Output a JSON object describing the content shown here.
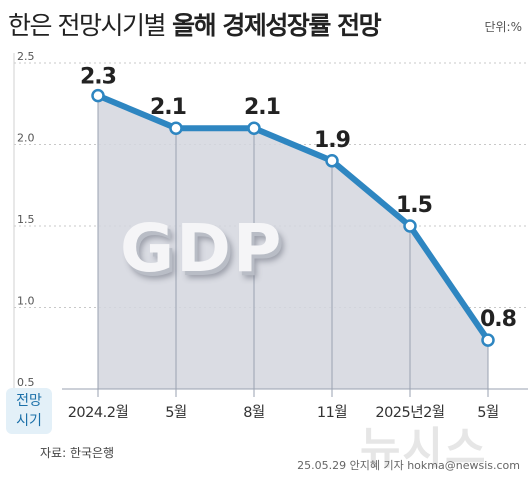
{
  "header": {
    "title_light": "한은 전망시기별",
    "title_bold": "올해 경제성장률 전망",
    "unit": "단위:%"
  },
  "chart_data": {
    "type": "area",
    "categories": [
      "2024.2월",
      "5월",
      "8월",
      "11월",
      "2025년2월",
      "5월"
    ],
    "values": [
      2.3,
      2.1,
      2.1,
      1.9,
      1.5,
      0.8
    ],
    "data_labels": [
      "2.3",
      "2.1",
      "2.1",
      "1.9",
      "1.5",
      "0.8"
    ],
    "y_ticks": [
      "0.5",
      "1.0",
      "1.5",
      "2.0",
      "2.5"
    ],
    "ylim": [
      0.5,
      2.5
    ],
    "xlabel": "전망 시기",
    "grid": true,
    "line_color": "#2e86c1",
    "area_color": "#d3d6de",
    "annotation": "GDP"
  },
  "legend": {
    "line1": "전망",
    "line2": "시기"
  },
  "source": "자료: 한국은행",
  "watermark": "뉴시스",
  "credit": "25.05.29 안지혜 기자 hokma@newsis.com"
}
